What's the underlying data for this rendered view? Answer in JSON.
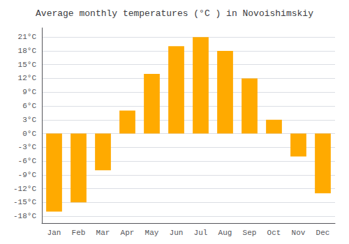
{
  "chart_data": {
    "type": "bar",
    "title": "Average monthly temperatures (°C ) in Novoishimskiy",
    "categories": [
      "Jan",
      "Feb",
      "Mar",
      "Apr",
      "May",
      "Jun",
      "Jul",
      "Aug",
      "Sep",
      "Oct",
      "Nov",
      "Dec"
    ],
    "values": [
      -17,
      -15,
      -8,
      5,
      13,
      19,
      21,
      18,
      12,
      3,
      -5,
      -13
    ],
    "color": "#FFAA00",
    "ylim": [
      -19.5,
      23
    ],
    "yticks": [
      {
        "value": -18,
        "label": "-18°C"
      },
      {
        "value": -15,
        "label": "-15°C"
      },
      {
        "value": -12,
        "label": "-12°C"
      },
      {
        "value": -9,
        "label": "-9°C"
      },
      {
        "value": -6,
        "label": "-6°C"
      },
      {
        "value": -3,
        "label": "-3°C"
      },
      {
        "value": 0,
        "label": "0°C"
      },
      {
        "value": 3,
        "label": "3°C"
      },
      {
        "value": 6,
        "label": "6°C"
      },
      {
        "value": 9,
        "label": "9°C"
      },
      {
        "value": 12,
        "label": "12°C"
      },
      {
        "value": 15,
        "label": "15°C"
      },
      {
        "value": 18,
        "label": "18°C"
      },
      {
        "value": 21,
        "label": "21°C"
      }
    ],
    "grid": true
  }
}
